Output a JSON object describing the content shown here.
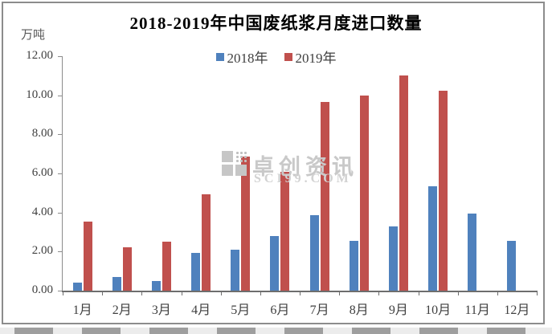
{
  "page": {
    "background": "#ffffff",
    "frame_border_color": "#8c8c8c"
  },
  "chart_data": {
    "type": "bar",
    "title": "2018-2019年中国废纸浆月度进口数量",
    "ylabel": "万吨",
    "xlabel": "",
    "categories": [
      "1月",
      "2月",
      "3月",
      "4月",
      "5月",
      "6月",
      "7月",
      "8月",
      "9月",
      "10月",
      "11月",
      "12月"
    ],
    "series": [
      {
        "name": "2018年",
        "color": "#4F81BD",
        "values": [
          0.4,
          0.7,
          0.5,
          1.95,
          2.1,
          2.8,
          3.85,
          2.55,
          3.3,
          5.35,
          3.95,
          2.55
        ]
      },
      {
        "name": "2019年",
        "color": "#C0504D",
        "values": [
          3.55,
          2.2,
          2.5,
          4.95,
          6.85,
          6.1,
          9.65,
          10.0,
          11.0,
          10.25,
          null,
          null
        ]
      }
    ],
    "ylim": [
      0,
      12
    ],
    "ytick_step": 2,
    "ytick_labels": [
      "0.00",
      "2.00",
      "4.00",
      "6.00",
      "8.00",
      "10.00",
      "12.00"
    ],
    "legend_position": "top-center",
    "grid": false
  },
  "watermark": {
    "logo": "sci99-grid-logo",
    "line1": "卓创资讯",
    "line2": "SCI99.COM"
  }
}
